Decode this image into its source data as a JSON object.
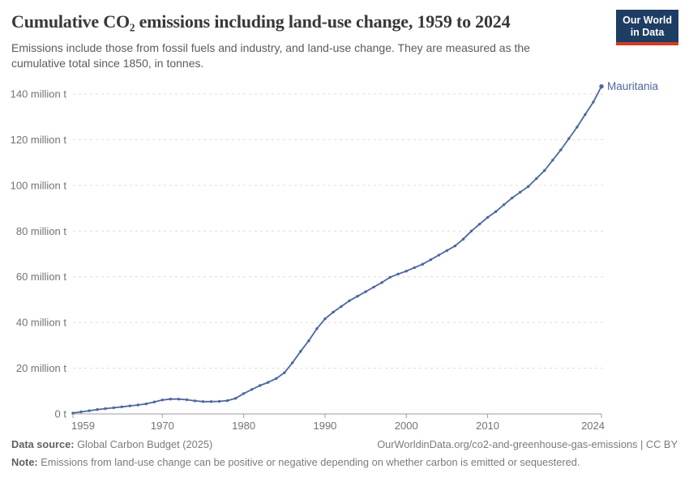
{
  "header": {
    "title": "Cumulative CO₂ emissions including land-use change, 1959 to 2024",
    "subtitle": "Emissions include those from fossil fuels and industry, and land-use change. They are measured as the cumulative total since 1850, in tonnes.",
    "logo": {
      "line1": "Our World",
      "line2": "in Data"
    }
  },
  "chart_data": {
    "type": "line",
    "title": "Cumulative CO₂ emissions including land-use change, 1959 to 2024",
    "xlabel": "",
    "ylabel": "",
    "xlim": [
      1959,
      2024
    ],
    "ylim": [
      0,
      145
    ],
    "grid": "horizontal-dashed",
    "legend_position": "end-of-line-label",
    "x_ticks": [
      1959,
      1970,
      1980,
      1990,
      2000,
      2010,
      2024
    ],
    "y_ticks": [
      0,
      20,
      40,
      60,
      80,
      100,
      120,
      140
    ],
    "y_tick_labels": [
      "0 t",
      "20 million t",
      "40 million t",
      "60 million t",
      "80 million t",
      "100 million t",
      "120 million t",
      "140 million t"
    ],
    "unit": "million tonnes",
    "series": [
      {
        "name": "Mauritania",
        "color": "#4c669f",
        "x": [
          1959,
          1960,
          1961,
          1962,
          1963,
          1964,
          1965,
          1966,
          1967,
          1968,
          1969,
          1970,
          1971,
          1972,
          1973,
          1974,
          1975,
          1976,
          1977,
          1978,
          1979,
          1980,
          1981,
          1982,
          1983,
          1984,
          1985,
          1986,
          1987,
          1988,
          1989,
          1990,
          1991,
          1992,
          1993,
          1994,
          1995,
          1996,
          1997,
          1998,
          1999,
          2000,
          2001,
          2002,
          2003,
          2004,
          2005,
          2006,
          2007,
          2008,
          2009,
          2010,
          2011,
          2012,
          2013,
          2014,
          2015,
          2016,
          2017,
          2018,
          2019,
          2020,
          2021,
          2022,
          2023,
          2024
        ],
        "values": [
          0.4,
          0.9,
          1.4,
          1.9,
          2.3,
          2.7,
          3.1,
          3.5,
          3.9,
          4.4,
          5.2,
          6.1,
          6.5,
          6.5,
          6.2,
          5.7,
          5.4,
          5.4,
          5.5,
          5.8,
          6.8,
          8.9,
          10.7,
          12.4,
          13.8,
          15.5,
          18.0,
          22.4,
          27.4,
          32.0,
          37.3,
          41.6,
          44.5,
          47.0,
          49.5,
          51.5,
          53.5,
          55.5,
          57.5,
          59.8,
          61.2,
          62.5,
          64.0,
          65.5,
          67.5,
          69.5,
          71.5,
          73.5,
          76.5,
          80.0,
          83.0,
          86.0,
          88.5,
          91.5,
          94.5,
          97.0,
          99.5,
          103.0,
          106.5,
          111.0,
          115.5,
          120.5,
          125.5,
          131.0,
          136.5,
          143.3
        ]
      }
    ]
  },
  "footer": {
    "source_label": "Data source:",
    "source_value": " Global Carbon Budget (2025)",
    "link": "OurWorldinData.org/co2-and-greenhouse-gas-emissions | CC BY",
    "note_label": "Note:",
    "note_value": " Emissions from land-use change can be positive or negative depending on whether carbon is emitted or sequestered."
  },
  "colors": {
    "accent_line": "#4c669f",
    "logo_bg": "#1d3d63",
    "logo_red": "#d63a23",
    "grid": "#dcdcdc",
    "axis": "#9e9e9e",
    "tick_text": "#737373"
  }
}
